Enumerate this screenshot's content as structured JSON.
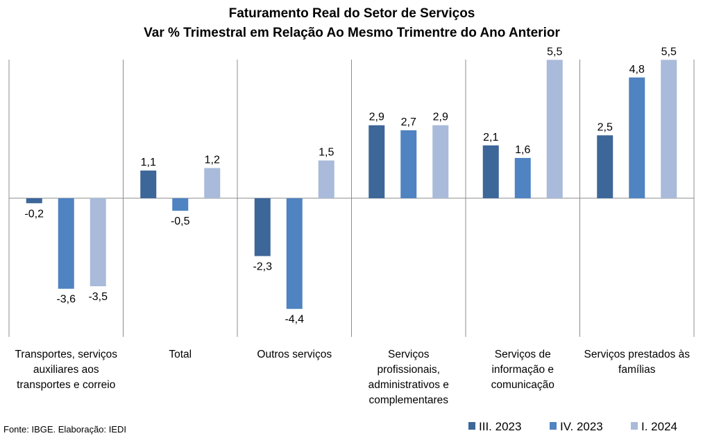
{
  "chart_data": {
    "type": "bar",
    "title": "Faturamento Real do Setor de Serviços",
    "subtitle": "Var % Trimestral em Relação Ao Mesmo Trimentre do Ano Anterior",
    "categories": [
      [
        "Transportes, serviços",
        "auxiliares aos",
        "transportes e correio"
      ],
      [
        "Total"
      ],
      [
        "Outros serviços"
      ],
      [
        "Serviços",
        "profissionais,",
        "administrativos e",
        "complementares"
      ],
      [
        "Serviços de",
        "informação e",
        "comunicação"
      ],
      [
        "Serviços prestados às",
        "famílias"
      ]
    ],
    "series": [
      {
        "name": "III. 2023",
        "color": "#3D6699",
        "values": [
          -0.2,
          1.1,
          -2.3,
          2.9,
          2.1,
          2.5
        ],
        "labels": [
          "-0,2",
          "1,1",
          "-2,3",
          "2,9",
          "2,1",
          "2,5"
        ]
      },
      {
        "name": "IV. 2023",
        "color": "#4F83C1",
        "values": [
          -3.6,
          -0.5,
          -4.4,
          2.7,
          1.6,
          4.8
        ],
        "labels": [
          "-3,6",
          "-0,5",
          "-4,4",
          "2,7",
          "1,6",
          "4,8"
        ]
      },
      {
        "name": "I. 2024",
        "color": "#A9BADA",
        "values": [
          -3.5,
          1.2,
          1.5,
          2.9,
          5.5,
          5.5
        ],
        "labels": [
          "-3,5",
          "1,2",
          "1,5",
          "2,9",
          "5,5",
          "5,5"
        ]
      }
    ],
    "legend_position": "bottom-right",
    "grid": false,
    "ylim": [
      -5.6,
      5.7
    ]
  },
  "source": "Fonte: IBGE. Elaboração: IEDI"
}
